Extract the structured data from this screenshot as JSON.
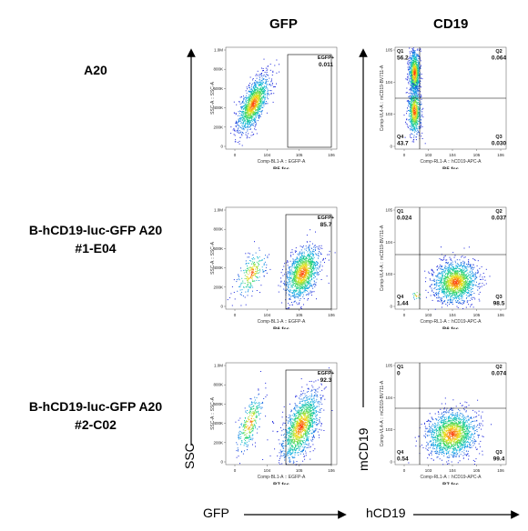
{
  "columns": {
    "gfp_title": "GFP",
    "cd19_title": "CD19"
  },
  "rows": [
    {
      "label_line1": "A20",
      "label_line2": ""
    },
    {
      "label_line1": "B-hCD19-luc-GFP A20",
      "label_line2": "#1-E04"
    },
    {
      "label_line1": "B-hCD19-luc-GFP A20",
      "label_line2": "#2-C02"
    }
  ],
  "axes": {
    "left_y": "SSC",
    "left_x": "GFP",
    "right_y": "mCD19",
    "right_x": "hCD19"
  },
  "gfp_plots": {
    "x_label": "Comp-BL1-A :: EGFP-A",
    "y_label": "SSC-A :: SSC-A",
    "x_ticks": [
      "0",
      "10^4",
      "10^5",
      "10^6"
    ],
    "y_ticks": [
      "0",
      "200K",
      "400K",
      "600K",
      "800K",
      "1.0M"
    ],
    "gate_name": "EGFP+",
    "panels": [
      {
        "file": "B5.fcs",
        "gate_value": "0.011"
      },
      {
        "file": "B6.fcs",
        "gate_value": "85.7"
      },
      {
        "file": "B7.fcs",
        "gate_value": "92.3"
      }
    ]
  },
  "cd19_plots": {
    "x_label": "Comp-RL1-A :: hCD19-APC-A",
    "y_label": "Comp-VL4-A :: mCD19-BV711-A",
    "x_ticks": [
      "0",
      "10^3",
      "10^4",
      "10^5",
      "10^6"
    ],
    "y_ticks": [
      "0",
      "10^3",
      "10^4",
      "10^5"
    ],
    "panels": [
      {
        "file": "B5.fcs",
        "q1": {
          "name": "Q1",
          "value": "56.2"
        },
        "q2": {
          "name": "Q2",
          "value": "0.064"
        },
        "q3": {
          "name": "Q3",
          "value": "0.030"
        },
        "q4": {
          "name": "Q4",
          "value": "43.7"
        }
      },
      {
        "file": "B6.fcs",
        "q1": {
          "name": "Q1",
          "value": "0.024"
        },
        "q2": {
          "name": "Q2",
          "value": "0.037"
        },
        "q3": {
          "name": "Q3",
          "value": "98.5"
        },
        "q4": {
          "name": "Q4",
          "value": "1.44"
        }
      },
      {
        "file": "B7.fcs",
        "q1": {
          "name": "Q1",
          "value": "0"
        },
        "q2": {
          "name": "Q2",
          "value": "0.074"
        },
        "q3": {
          "name": "Q3",
          "value": "99.4"
        },
        "q4": {
          "name": "Q4",
          "value": "0.54"
        }
      }
    ]
  },
  "colors": {
    "density_low": "#1f2dd6",
    "density_mid": "#19d07a",
    "density_high": "#ff2a10",
    "gate_line": "#000000"
  }
}
